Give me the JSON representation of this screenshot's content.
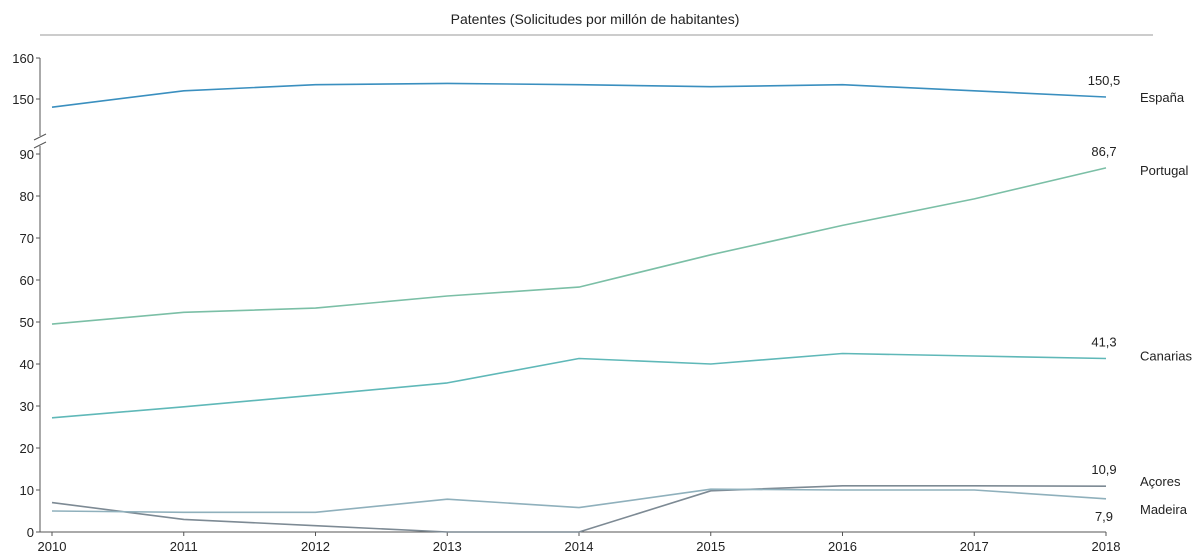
{
  "chart_data": {
    "type": "line",
    "title": "Patentes (Solicitudes por millón de habitantes)",
    "x": [
      "2010",
      "2011",
      "2012",
      "2013",
      "2014",
      "2015",
      "2016",
      "2017",
      "2018"
    ],
    "y_break": {
      "lower_range": [
        0,
        90
      ],
      "upper_range": [
        150,
        160
      ]
    },
    "y_ticks": [
      0,
      10,
      20,
      30,
      40,
      50,
      60,
      70,
      80,
      90,
      150,
      160
    ],
    "grid": false,
    "series": [
      {
        "name": "España",
        "color": "#3a8fbf",
        "values": [
          148,
          152,
          153.5,
          153.8,
          153.5,
          153,
          153.5,
          152,
          150.5
        ],
        "end_label": "150,5"
      },
      {
        "name": "Portugal",
        "color": "#7bbfa6",
        "values": [
          49.5,
          52.3,
          53.3,
          56.2,
          58.3,
          66,
          73,
          79.3,
          86.7
        ],
        "end_label": "86,7"
      },
      {
        "name": "Canarias",
        "color": "#5fb8b8",
        "values": [
          27.2,
          29.8,
          32.6,
          35.5,
          41.3,
          40,
          42.5,
          41.9,
          41.3
        ],
        "end_label": "41,3"
      },
      {
        "name": "Açores",
        "color": "#7d8a94",
        "values": [
          7,
          3,
          1.5,
          0,
          0,
          9.8,
          11,
          11,
          10.9
        ],
        "end_label": "10,9"
      },
      {
        "name": "Madeira",
        "color": "#8fb0bc",
        "values": [
          5,
          4.7,
          4.7,
          7.8,
          5.8,
          10.2,
          10,
          10,
          7.9
        ],
        "end_label": "7,9"
      }
    ]
  }
}
